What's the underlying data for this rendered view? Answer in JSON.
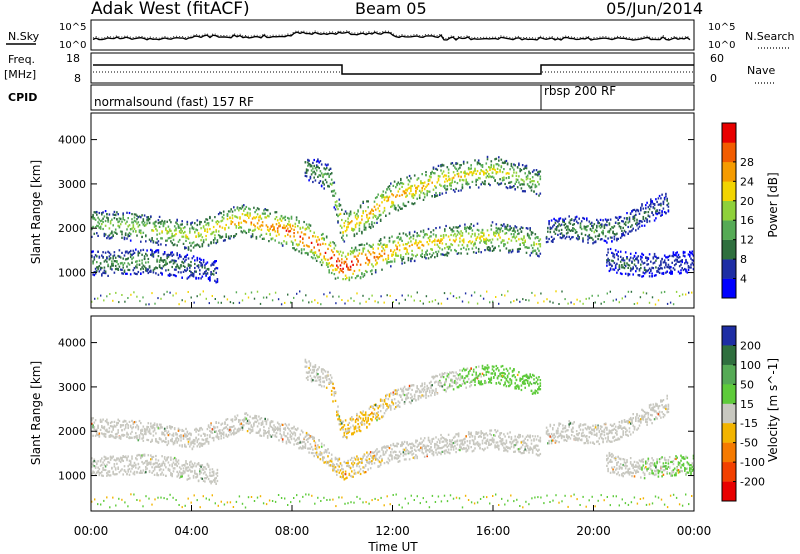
{
  "header": {
    "station": "Adak West (fitACF)",
    "beam": "Beam 05",
    "date": "05/Jun/2014"
  },
  "noise_panel": {
    "left_label": "N.Sky",
    "right_label": "N.Search",
    "tick_top": "10^5",
    "tick_bottom": "10^0"
  },
  "freq_panel": {
    "left_label_1": "Freq.",
    "left_label_2": "[MHz]",
    "right_label": "Nave",
    "left_ticks": [
      "18",
      "8"
    ],
    "right_ticks": [
      "60",
      "0"
    ]
  },
  "cpid_panel": {
    "label": "CPID",
    "segments": [
      {
        "text": "normalsound (fast) 157 RF",
        "start": "00:00",
        "end": "18:00"
      },
      {
        "text": "rbsp 200 RF",
        "start": "18:00",
        "end": "00:00"
      }
    ]
  },
  "chart_data": [
    {
      "type": "heatmap",
      "title": "",
      "xlabel": "Time UT",
      "ylabel": "Slant Range [km]",
      "x_ticks": [
        "00:00",
        "04:00",
        "08:00",
        "12:00",
        "16:00",
        "20:00",
        "00:00"
      ],
      "y_ticks": [
        1000,
        2000,
        3000,
        4000
      ],
      "ylim": [
        200,
        4600
      ],
      "colorbar": {
        "label": "Power [dB]",
        "ticks": [
          "4",
          "8",
          "12",
          "16",
          "20",
          "24",
          "28"
        ],
        "range": [
          0,
          30
        ],
        "colors": [
          "#0000ff",
          "#1e2ea4",
          "#2f6f3e",
          "#55aa55",
          "#8fd13a",
          "#f2d400",
          "#f59b00",
          "#f25c00",
          "#e80000"
        ]
      },
      "bands": [
        {
          "time_h": [
            0,
            2,
            4,
            6,
            8,
            9,
            10,
            11,
            12,
            14,
            16,
            17.9
          ],
          "range_km": [
            2100,
            2000,
            1800,
            2200,
            1900,
            1600,
            1100,
            1300,
            1500,
            1700,
            1800,
            1650
          ],
          "power_db": [
            14,
            16,
            18,
            22,
            26,
            28,
            30,
            26,
            22,
            20,
            18,
            16
          ]
        },
        {
          "time_h": [
            0,
            1,
            2,
            3,
            4,
            5
          ],
          "range_km": [
            1200,
            1200,
            1250,
            1200,
            1100,
            1000
          ],
          "power_db": [
            10,
            12,
            12,
            10,
            8,
            6
          ]
        },
        {
          "time_h": [
            8.5,
            9.5,
            10,
            11,
            12,
            14,
            16,
            17.9
          ],
          "range_km": [
            3400,
            3100,
            2000,
            2300,
            2700,
            3100,
            3300,
            3000
          ],
          "power_db": [
            10,
            14,
            20,
            22,
            22,
            20,
            18,
            14
          ]
        },
        {
          "time_h": [
            18.1,
            19,
            20,
            21,
            22,
            23
          ],
          "range_km": [
            1900,
            2000,
            1900,
            2000,
            2300,
            2600
          ],
          "power_db": [
            8,
            10,
            12,
            10,
            8,
            6
          ]
        },
        {
          "time_h": [
            20.5,
            21,
            22,
            23,
            24
          ],
          "range_km": [
            1300,
            1200,
            1150,
            1200,
            1250
          ],
          "power_db": [
            6,
            8,
            8,
            6,
            4
          ]
        }
      ]
    },
    {
      "type": "heatmap",
      "title": "",
      "xlabel": "Time UT",
      "ylabel": "Slant Range [km]",
      "x_ticks": [
        "00:00",
        "04:00",
        "08:00",
        "12:00",
        "16:00",
        "20:00",
        "00:00"
      ],
      "y_ticks": [
        1000,
        2000,
        3000,
        4000
      ],
      "ylim": [
        200,
        4600
      ],
      "colorbar": {
        "label": "Velocity [m s^-1]",
        "ticks": [
          "200",
          "100",
          "50",
          "15",
          "-15",
          "-50",
          "-100",
          "-200"
        ],
        "range": [
          -250,
          250
        ],
        "colors": [
          "#1e2ea4",
          "#2f6f3e",
          "#55aa55",
          "#5ecb3a",
          "#c8c8c0",
          "#f2b400",
          "#f57a00",
          "#f24000",
          "#e80000"
        ]
      },
      "bands": [
        {
          "time_h": [
            0,
            2,
            4,
            6,
            8,
            9,
            10,
            11,
            12,
            14,
            16,
            17.9
          ],
          "range_km": [
            2100,
            2000,
            1800,
            2200,
            1900,
            1600,
            1100,
            1300,
            1500,
            1700,
            1800,
            1650
          ],
          "velocity": [
            0,
            0,
            0,
            0,
            0,
            -20,
            -30,
            -20,
            -10,
            0,
            0,
            0
          ]
        },
        {
          "time_h": [
            0,
            1,
            2,
            3,
            4,
            5
          ],
          "range_km": [
            1200,
            1200,
            1250,
            1200,
            1100,
            1000
          ],
          "velocity": [
            0,
            0,
            0,
            0,
            0,
            0
          ]
        },
        {
          "time_h": [
            8.5,
            9.5,
            10,
            11,
            12,
            14,
            16,
            17.9
          ],
          "range_km": [
            3400,
            3100,
            2000,
            2300,
            2700,
            3100,
            3300,
            3000
          ],
          "velocity": [
            0,
            -20,
            -30,
            -40,
            -20,
            20,
            40,
            50
          ]
        },
        {
          "time_h": [
            18.1,
            19,
            20,
            21,
            22,
            23
          ],
          "range_km": [
            1900,
            2000,
            1900,
            2000,
            2300,
            2600
          ],
          "velocity": [
            0,
            0,
            0,
            0,
            0,
            0
          ]
        },
        {
          "time_h": [
            20.5,
            21,
            22,
            23,
            24
          ],
          "range_km": [
            1300,
            1200,
            1150,
            1200,
            1250
          ],
          "velocity": [
            0,
            0,
            20,
            30,
            40
          ]
        }
      ]
    }
  ]
}
